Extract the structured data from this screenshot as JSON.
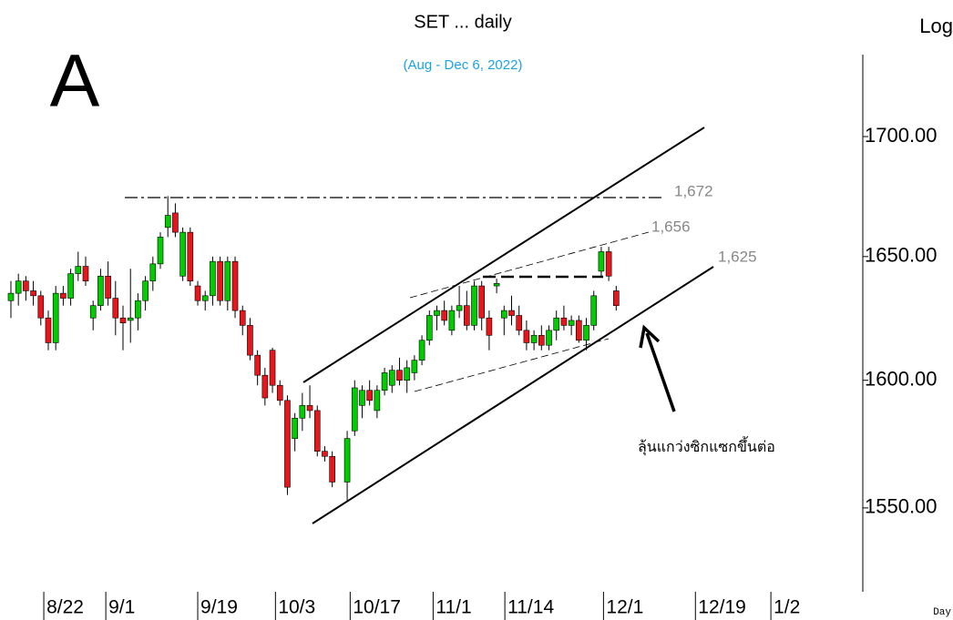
{
  "chart_data": {
    "type": "candlestick",
    "title": "SET ... daily",
    "subtitle": "(Aug - Dec 6, 2022)",
    "panel_label": "A",
    "scale_label": "Log",
    "x_axis_label": "Day",
    "log_scale": true,
    "up_color": "#00cc00",
    "down_color": "#e8161b",
    "annotations": [
      "1,672",
      "1,656",
      "1,625",
      "ลุ้นแกว่งซิกแซกขึ้นต่อ"
    ],
    "x": [
      0,
      1,
      2,
      3,
      4,
      5,
      6,
      7,
      8,
      9,
      10,
      11,
      12,
      13,
      14,
      15,
      16,
      17,
      18,
      19,
      20,
      21,
      22,
      23,
      24,
      25,
      26,
      27,
      28,
      29,
      30,
      31,
      32,
      33,
      34,
      35,
      36,
      37,
      38,
      39,
      40,
      41,
      42,
      43,
      45,
      46,
      47,
      48,
      49,
      50,
      51,
      52,
      53,
      54,
      55,
      56,
      57,
      58,
      59,
      60,
      61,
      62,
      63,
      64,
      65,
      66,
      67,
      68,
      69,
      70,
      71,
      72,
      73,
      74,
      75,
      76,
      77,
      78,
      79,
      80,
      81
    ],
    "open": [
      1632,
      1635,
      1640,
      1636,
      1634,
      1625,
      1615,
      1635,
      1633,
      1643,
      1646,
      1625,
      1630,
      1642,
      1633,
      1625,
      1624,
      1625,
      1632,
      1640,
      1647,
      1662,
      1668,
      1642,
      1660,
      1638,
      1632,
      1634,
      1648,
      1632,
      1648,
      1628,
      1622,
      1610,
      1602,
      1612,
      1598,
      1592,
      1577,
      1585,
      1590,
      1588,
      1572,
      1570,
      1560,
      1580,
      1590,
      1596,
      1588,
      1596,
      1598,
      1604,
      1600,
      1603,
      1608,
      1616,
      1626,
      1628,
      1620,
      1628,
      1630,
      1622,
      1638,
      1625,
      1638,
      1625,
      1628,
      1626,
      1620,
      1615,
      1618,
      1614,
      1620,
      1625,
      1622,
      1624,
      1616,
      1622,
      1644,
      1652,
      1636
    ],
    "high": [
      1640,
      1643,
      1642,
      1640,
      1636,
      1628,
      1638,
      1638,
      1645,
      1652,
      1650,
      1632,
      1645,
      1648,
      1640,
      1630,
      1645,
      1635,
      1642,
      1650,
      1660,
      1675,
      1672,
      1662,
      1662,
      1640,
      1636,
      1650,
      1650,
      1650,
      1650,
      1630,
      1625,
      1612,
      1605,
      1613,
      1600,
      1594,
      1587,
      1595,
      1598,
      1590,
      1574,
      1572,
      1580,
      1600,
      1598,
      1600,
      1598,
      1605,
      1606,
      1609,
      1608,
      1610,
      1618,
      1628,
      1630,
      1632,
      1630,
      1638,
      1636,
      1640,
      1640,
      1628,
      1641,
      1630,
      1634,
      1630,
      1624,
      1620,
      1622,
      1622,
      1628,
      1630,
      1626,
      1626,
      1625,
      1636,
      1654,
      1654,
      1638
    ],
    "low": [
      1625,
      1630,
      1632,
      1630,
      1622,
      1612,
      1612,
      1630,
      1630,
      1640,
      1638,
      1620,
      1628,
      1630,
      1618,
      1612,
      1615,
      1620,
      1628,
      1636,
      1645,
      1658,
      1658,
      1640,
      1638,
      1630,
      1628,
      1630,
      1630,
      1628,
      1625,
      1618,
      1608,
      1598,
      1590,
      1595,
      1590,
      1555,
      1572,
      1580,
      1585,
      1570,
      1568,
      1558,
      1553,
      1578,
      1585,
      1590,
      1585,
      1594,
      1595,
      1598,
      1595,
      1600,
      1606,
      1614,
      1620,
      1622,
      1618,
      1625,
      1620,
      1620,
      1620,
      1612,
      1635,
      1618,
      1622,
      1618,
      1612,
      1612,
      1612,
      1612,
      1616,
      1620,
      1618,
      1615,
      1612,
      1620,
      1642,
      1640,
      1628
    ],
    "close": [
      1635,
      1640,
      1636,
      1634,
      1625,
      1615,
      1635,
      1633,
      1643,
      1646,
      1640,
      1630,
      1642,
      1633,
      1625,
      1623,
      1625,
      1632,
      1640,
      1647,
      1658,
      1667,
      1660,
      1660,
      1640,
      1632,
      1634,
      1648,
      1632,
      1648,
      1628,
      1622,
      1610,
      1602,
      1593,
      1598,
      1592,
      1558,
      1585,
      1590,
      1588,
      1572,
      1570,
      1560,
      1577,
      1597,
      1596,
      1592,
      1596,
      1603,
      1604,
      1600,
      1605,
      1608,
      1616,
      1626,
      1628,
      1624,
      1628,
      1630,
      1622,
      1638,
      1625,
      1618,
      1639,
      1628,
      1626,
      1620,
      1615,
      1618,
      1614,
      1620,
      1625,
      1622,
      1624,
      1616,
      1622,
      1634,
      1652,
      1642,
      1630
    ],
    "xlim": [
      -1.46,
      114
    ],
    "xticks": [
      {
        "value": 4.4,
        "label": "8/22"
      },
      {
        "value": 12.7,
        "label": "9/1"
      },
      {
        "value": 25,
        "label": "9/19"
      },
      {
        "value": 35.4,
        "label": "10/3"
      },
      {
        "value": 45.4,
        "label": "10/17"
      },
      {
        "value": 56.5,
        "label": "11/1"
      },
      {
        "value": 66.1,
        "label": "11/14"
      },
      {
        "value": 79.3,
        "label": "12/1"
      },
      {
        "value": 91.6,
        "label": "12/19"
      },
      {
        "value": 101.7,
        "label": "1/2"
      }
    ],
    "ylim": [
      1518,
      1735
    ],
    "yticks": [
      {
        "value": 1550,
        "label": "1550.00"
      },
      {
        "value": 1600,
        "label": "1600.00"
      },
      {
        "value": 1650,
        "label": "1650.00"
      },
      {
        "value": 1700,
        "label": "1700.00"
      }
    ]
  }
}
